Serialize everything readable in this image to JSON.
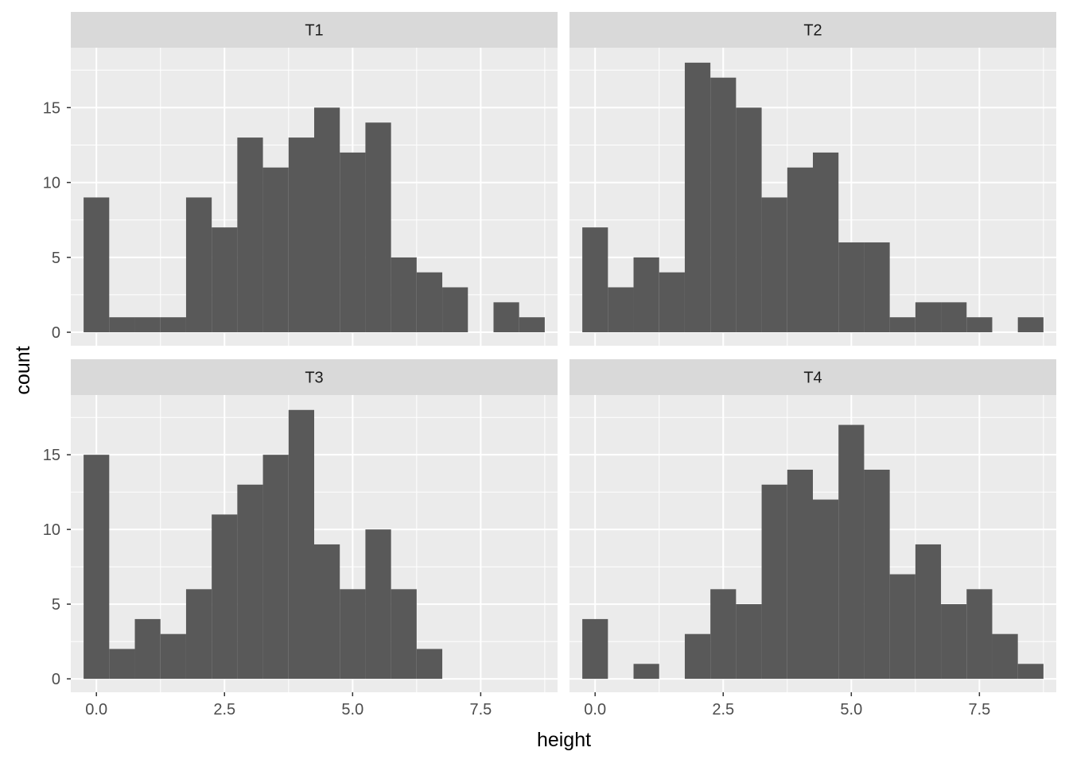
{
  "chart_data": {
    "type": "bar",
    "subtype": "faceted-histogram",
    "xlabel": "height",
    "ylabel": "count",
    "xlim": [
      -0.5,
      9.0
    ],
    "ylim": [
      -0.9,
      19.0
    ],
    "bin_width": 0.5,
    "bin_centers": [
      0,
      0.5,
      1,
      1.5,
      2,
      2.5,
      3,
      3.5,
      4,
      4.5,
      5,
      5.5,
      6,
      6.5,
      7,
      7.5,
      8,
      8.5
    ],
    "x_ticks": [
      0,
      2.5,
      5,
      7.5
    ],
    "x_tick_labels": [
      "0.0",
      "2.5",
      "5.0",
      "7.5"
    ],
    "y_ticks": [
      0,
      5,
      10,
      15
    ],
    "y_tick_labels": [
      "0",
      "5",
      "10",
      "15"
    ],
    "grid": true,
    "bar_color": "#595959",
    "panel_background": "#ebebeb",
    "strip_background": "#d9d9d9",
    "facets": [
      {
        "name": "T1",
        "counts": [
          9,
          1,
          1,
          1,
          9,
          7,
          13,
          11,
          13,
          15,
          12,
          14,
          5,
          4,
          3,
          0,
          2,
          1
        ]
      },
      {
        "name": "T2",
        "counts": [
          7,
          3,
          5,
          4,
          18,
          17,
          15,
          9,
          11,
          12,
          6,
          6,
          1,
          2,
          2,
          1,
          0,
          1
        ]
      },
      {
        "name": "T3",
        "counts": [
          15,
          2,
          4,
          3,
          6,
          11,
          13,
          15,
          18,
          9,
          6,
          10,
          6,
          2,
          0,
          0,
          0,
          0
        ]
      },
      {
        "name": "T4",
        "counts": [
          4,
          0,
          1,
          0,
          3,
          6,
          5,
          13,
          14,
          12,
          17,
          14,
          7,
          9,
          5,
          6,
          3,
          1
        ]
      }
    ]
  }
}
